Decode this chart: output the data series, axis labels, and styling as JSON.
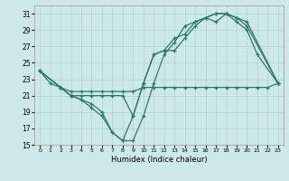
{
  "xlabel": "Humidex (Indice chaleur)",
  "bg_color": "#cce8e8",
  "grid_color": "#aad4d4",
  "line_color": "#2d7a6a",
  "xlim": [
    -0.5,
    23.5
  ],
  "ylim": [
    15,
    32
  ],
  "yticks": [
    15,
    17,
    19,
    21,
    23,
    25,
    27,
    29,
    31
  ],
  "xticks": [
    0,
    1,
    2,
    3,
    4,
    5,
    6,
    7,
    8,
    9,
    10,
    11,
    12,
    13,
    14,
    15,
    16,
    17,
    18,
    19,
    20,
    21,
    22,
    23
  ],
  "line1_x": [
    0,
    1,
    2,
    3,
    4,
    5,
    6,
    7,
    8,
    9,
    10,
    11,
    12,
    13,
    14,
    15,
    16,
    17,
    18,
    19,
    20,
    23
  ],
  "line1_y": [
    24.0,
    22.5,
    22.0,
    21.0,
    20.5,
    19.5,
    18.5,
    16.5,
    15.5,
    15.5,
    18.5,
    22.5,
    26.0,
    27.5,
    29.5,
    30.0,
    30.5,
    31.0,
    31.0,
    30.5,
    30.0,
    22.5
  ],
  "line2_x": [
    0,
    2,
    3,
    4,
    5,
    6,
    7,
    8,
    9,
    10,
    11,
    12,
    13,
    14,
    15,
    16,
    17,
    18,
    19,
    20,
    21,
    22,
    23
  ],
  "line2_y": [
    24.0,
    22.0,
    21.5,
    21.5,
    21.5,
    21.5,
    21.5,
    21.5,
    21.5,
    22.0,
    22.0,
    22.0,
    22.0,
    22.0,
    22.0,
    22.0,
    22.0,
    22.0,
    22.0,
    22.0,
    22.0,
    22.0,
    22.5
  ],
  "line3_x": [
    0,
    2,
    3,
    4,
    5,
    6,
    7,
    8,
    9,
    10,
    11,
    12,
    13,
    14,
    15,
    16,
    17,
    18,
    19,
    20,
    21,
    23
  ],
  "line3_y": [
    24.0,
    22.0,
    21.0,
    20.5,
    20.0,
    19.0,
    16.5,
    15.5,
    18.5,
    22.5,
    26.0,
    26.5,
    28.0,
    28.5,
    30.0,
    30.5,
    31.0,
    31.0,
    30.0,
    29.0,
    26.0,
    22.5
  ],
  "line4_x": [
    0,
    2,
    3,
    4,
    5,
    6,
    7,
    8,
    9,
    10,
    11,
    12,
    13,
    14,
    15,
    16,
    17,
    18,
    19,
    20,
    23
  ],
  "line4_y": [
    24.0,
    22.0,
    21.0,
    21.0,
    21.0,
    21.0,
    21.0,
    21.0,
    18.5,
    22.5,
    26.0,
    26.5,
    26.5,
    28.0,
    29.5,
    30.5,
    30.0,
    31.0,
    30.5,
    29.5,
    22.5
  ]
}
